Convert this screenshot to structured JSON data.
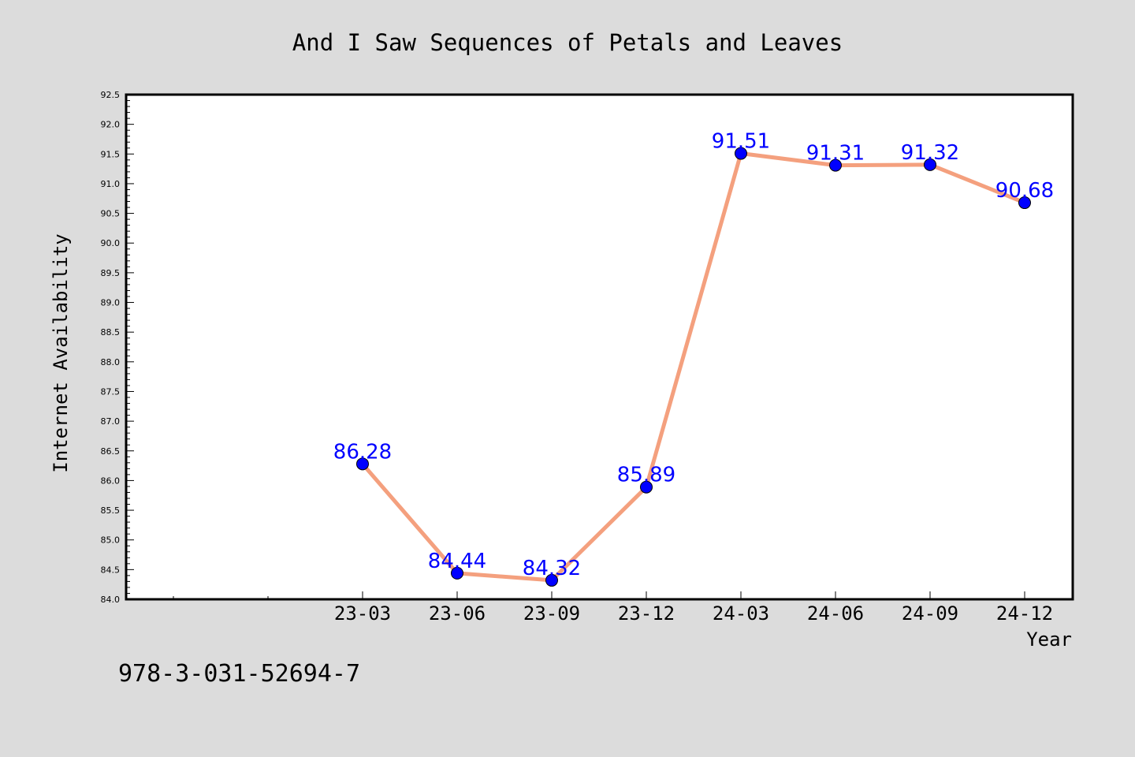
{
  "chart_data": {
    "type": "line",
    "title": "And I Saw Sequences of Petals and Leaves",
    "xlabel": "Year",
    "ylabel": "Internet Availability",
    "categories": [
      "23-03",
      "23-06",
      "23-09",
      "23-12",
      "24-03",
      "24-06",
      "24-09",
      "24-12"
    ],
    "values": [
      86.28,
      84.44,
      84.32,
      85.89,
      91.51,
      91.31,
      91.32,
      90.68
    ],
    "value_labels": [
      "86.28",
      "84.44",
      "84.32",
      "85.89",
      "91.51",
      "91.31",
      "91.32",
      "90.68"
    ],
    "ylim": [
      84.0,
      92.5
    ],
    "y_ticks": [
      "84.0",
      "84.5",
      "85.0",
      "85.5",
      "86.0",
      "86.5",
      "87.0",
      "87.5",
      "88.0",
      "88.5",
      "89.0",
      "89.5",
      "90.0",
      "90.5",
      "91.0",
      "91.5",
      "92.0",
      "92.5"
    ],
    "grid": false,
    "line_color": "#f4a07e",
    "marker_color": "#0000ff",
    "label_color": "#0000ff"
  },
  "footer": {
    "code": "978-3-031-52694-7"
  }
}
